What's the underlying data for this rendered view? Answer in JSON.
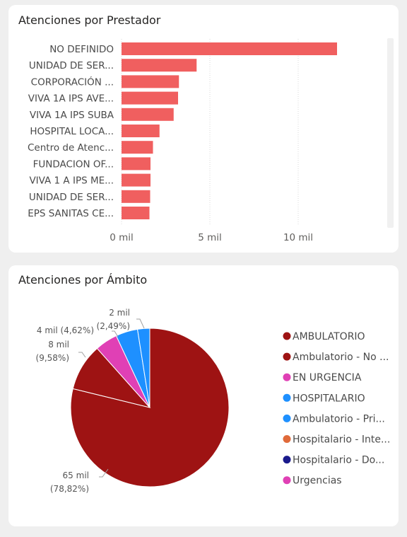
{
  "chart_data": [
    {
      "type": "bar",
      "orientation": "horizontal",
      "title": "Atenciones por Prestador",
      "categories": [
        "NO DEFINIDO",
        "UNIDAD DE SER...",
        "CORPORACIÓN ...",
        "VIVA 1A IPS AVE...",
        "VIVA 1A IPS SUBA",
        "HOSPITAL LOCA...",
        "Centro de Atenc...",
        "FUNDACION OF...",
        "VIVA 1 A IPS ME...",
        "UNIDAD DE SER...",
        "EPS SANITAS CE..."
      ],
      "values": [
        12200,
        4250,
        3250,
        3200,
        2950,
        2150,
        1780,
        1640,
        1640,
        1620,
        1580
      ],
      "xlim": [
        0,
        14000
      ],
      "xticks": [
        0,
        5000,
        10000
      ],
      "xtick_labels": [
        "0 mil",
        "5 mil",
        "10 mil"
      ],
      "bar_color": "#f05f5f",
      "grid": true
    },
    {
      "type": "pie",
      "title": "Atenciones por Ámbito",
      "slices": [
        {
          "value": 78.82,
          "color": "#9e1313",
          "label": "65 mil",
          "pct": "(78,82%)"
        },
        {
          "value": 9.58,
          "color": "#9e1313",
          "label": "8 mil",
          "pct": "(9,58%)"
        },
        {
          "value": 4.62,
          "color": "#e040b5",
          "label": "4 mil (4,62%)",
          "pct": ""
        },
        {
          "value": 4.49,
          "color": "#1e90ff",
          "label": "",
          "pct": ""
        },
        {
          "value": 2.49,
          "color": "#1e90ff",
          "label": "2 mil",
          "pct": "(2,49%)"
        }
      ],
      "legend": [
        {
          "label": "AMBULATORIO",
          "color": "#9e1313"
        },
        {
          "label": "Ambulatorio - No ...",
          "color": "#9e1313"
        },
        {
          "label": "EN URGENCIA",
          "color": "#e040b5"
        },
        {
          "label": "HOSPITALARIO",
          "color": "#1e90ff"
        },
        {
          "label": "Ambulatorio - Pri...",
          "color": "#1e90ff"
        },
        {
          "label": "Hospitalario - Inte...",
          "color": "#e06a3a"
        },
        {
          "label": "Hospitalario - Do...",
          "color": "#1a1a8c"
        },
        {
          "label": "Urgencias",
          "color": "#e040b5"
        }
      ],
      "legend_position": "right"
    }
  ]
}
